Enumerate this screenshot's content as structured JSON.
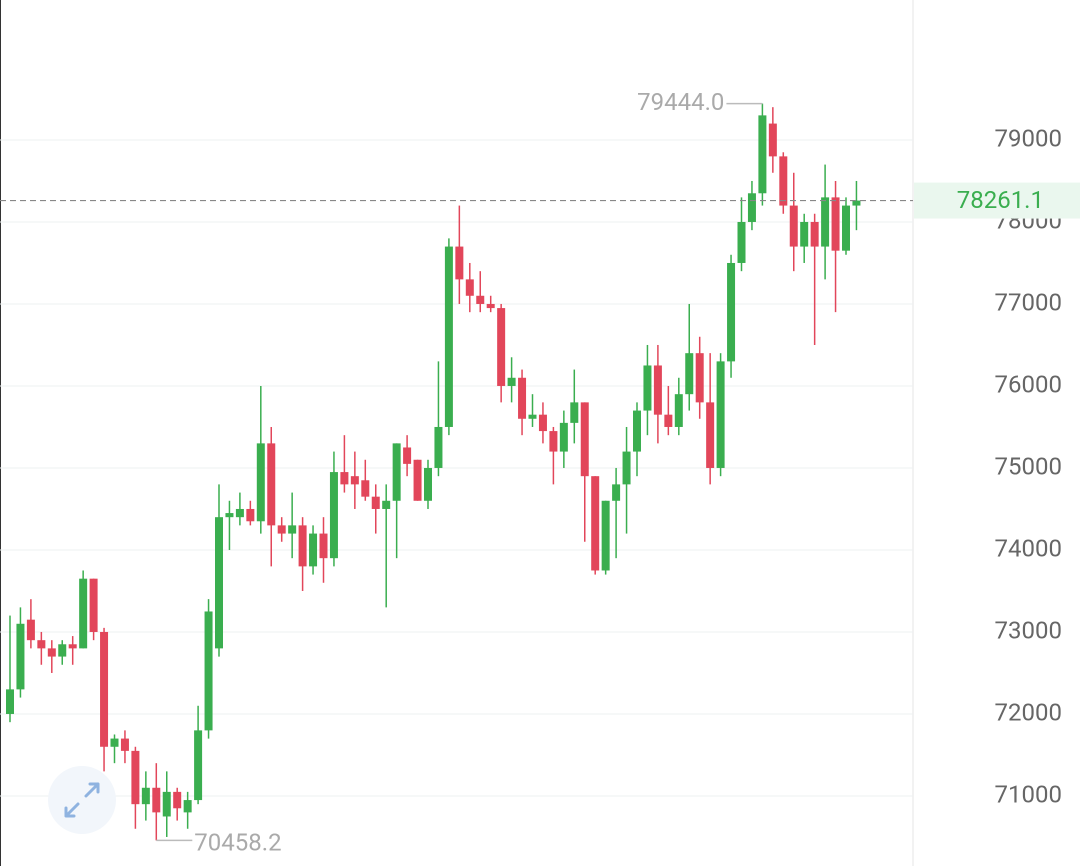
{
  "chart_data": {
    "type": "candlestick",
    "open": [
      72000,
      72300,
      73150,
      72900,
      72800,
      72700,
      72850,
      72800,
      73650,
      73000,
      71600,
      71700,
      71550,
      70900,
      71100,
      70750,
      71050,
      70800,
      70950,
      71800,
      72800,
      74400,
      74400,
      74500,
      74350,
      75300,
      74300,
      74200,
      74300,
      73800,
      74200,
      73900,
      74950,
      74900,
      74850,
      74650,
      74500,
      74600,
      75250,
      75100,
      74600,
      75000,
      75500,
      77700,
      77300,
      77100,
      77000,
      76950,
      76000,
      76100,
      75600,
      75650,
      75450,
      75200,
      75550,
      75800,
      74900,
      73750,
      74600,
      74800,
      75200,
      75700,
      76250,
      75650,
      75500,
      75900,
      76400,
      75800,
      75000,
      76300,
      77500,
      78000,
      78350,
      79200,
      78800,
      78200,
      77700,
      78000,
      77700,
      78300,
      77650,
      78200
    ],
    "high": [
      73200,
      73300,
      73400,
      73000,
      72900,
      72900,
      72950,
      73750,
      73650,
      73050,
      71750,
      71800,
      71600,
      71300,
      71400,
      71300,
      71100,
      71050,
      72100,
      73400,
      74800,
      74600,
      74700,
      74600,
      76000,
      75500,
      74400,
      74700,
      74400,
      74300,
      74400,
      75200,
      75400,
      75200,
      75100,
      74800,
      74800,
      75300,
      75400,
      75100,
      75100,
      76300,
      77800,
      78200,
      77500,
      77400,
      77100,
      77000,
      76350,
      76200,
      75900,
      75800,
      75500,
      75700,
      76200,
      75800,
      74900,
      74600,
      75000,
      75500,
      75800,
      76500,
      76500,
      76000,
      76100,
      77000,
      76600,
      76400,
      76400,
      77600,
      78300,
      78500,
      79444,
      79400,
      78850,
      78600,
      78100,
      78100,
      78700,
      78500,
      78300,
      78500
    ],
    "low": [
      71900,
      72200,
      72800,
      72600,
      72500,
      72600,
      72600,
      72800,
      72900,
      71300,
      71400,
      71400,
      70600,
      70700,
      70458.2,
      70500,
      70700,
      70600,
      70900,
      71700,
      72700,
      74000,
      74300,
      74300,
      74200,
      73800,
      74100,
      73900,
      73500,
      73700,
      73600,
      73800,
      74700,
      74500,
      74600,
      74200,
      73300,
      73900,
      74900,
      74600,
      74500,
      74900,
      75400,
      77000,
      76900,
      76900,
      76900,
      75800,
      75800,
      75400,
      75500,
      75300,
      74800,
      75000,
      75300,
      74100,
      73700,
      73700,
      73900,
      74200,
      74900,
      75400,
      75300,
      75400,
      75400,
      75700,
      75600,
      74800,
      74900,
      76100,
      77400,
      77900,
      78200,
      78600,
      78100,
      77400,
      77500,
      76500,
      77300,
      76900,
      77600,
      77900
    ],
    "close": [
      72300,
      73100,
      72900,
      72800,
      72700,
      72850,
      72800,
      73650,
      73000,
      71600,
      71700,
      71550,
      70900,
      71100,
      70800,
      71050,
      70850,
      70950,
      71800,
      73250,
      74400,
      74450,
      74500,
      74350,
      75300,
      74300,
      74200,
      74300,
      73800,
      74200,
      73900,
      74950,
      74800,
      74800,
      74650,
      74500,
      74600,
      75300,
      75050,
      74600,
      75000,
      75500,
      77700,
      77300,
      77100,
      77000,
      76950,
      76000,
      76100,
      75600,
      75650,
      75450,
      75200,
      75550,
      75800,
      74900,
      73750,
      74600,
      74800,
      75200,
      75700,
      76250,
      75650,
      75500,
      75900,
      76400,
      75800,
      75000,
      76300,
      77500,
      78000,
      78350,
      79300,
      78800,
      78200,
      77700,
      78000,
      77700,
      78300,
      77650,
      78200,
      78261.1
    ],
    "up_color": "#3aae4f",
    "down_color": "#e2465a",
    "ylim": [
      70146,
      80707
    ],
    "yticks": [
      71000,
      72000,
      73000,
      74000,
      75000,
      76000,
      77000,
      78000,
      79000
    ],
    "grid": true,
    "max_label": "79444.0",
    "min_label": "70458.2",
    "last_price": {
      "value": 78261.1,
      "label": "78261.1"
    }
  }
}
